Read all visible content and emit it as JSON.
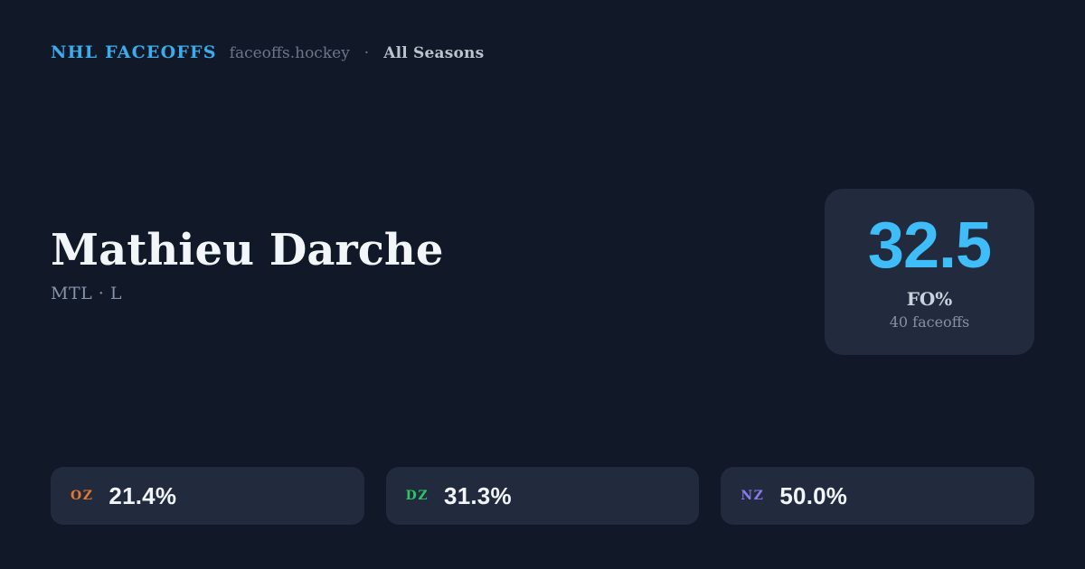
{
  "header": {
    "brand": "NHL FACEOFFS",
    "domain": "faceoffs.hockey",
    "separator": "·",
    "scope": "All Seasons"
  },
  "player": {
    "name": "Mathieu Darche",
    "team_position": "MTL · L"
  },
  "stat_card": {
    "value": "32.5",
    "label": "FO%",
    "sub": "40 faceoffs"
  },
  "zones": [
    {
      "label": "OZ",
      "value": "21.4%",
      "color": "#e4762e"
    },
    {
      "label": "DZ",
      "value": "31.3%",
      "color": "#2fc464"
    },
    {
      "label": "NZ",
      "value": "50.0%",
      "color": "#8b7bea"
    }
  ],
  "colors": {
    "background": "#111827",
    "card": "#212b3d",
    "brand": "#3badec",
    "accent": "#3fbdf8",
    "name_text": "#f3f6f9",
    "muted": "#6b7789",
    "subtitle": "#8593a8",
    "value_text": "#f2f5f8"
  }
}
